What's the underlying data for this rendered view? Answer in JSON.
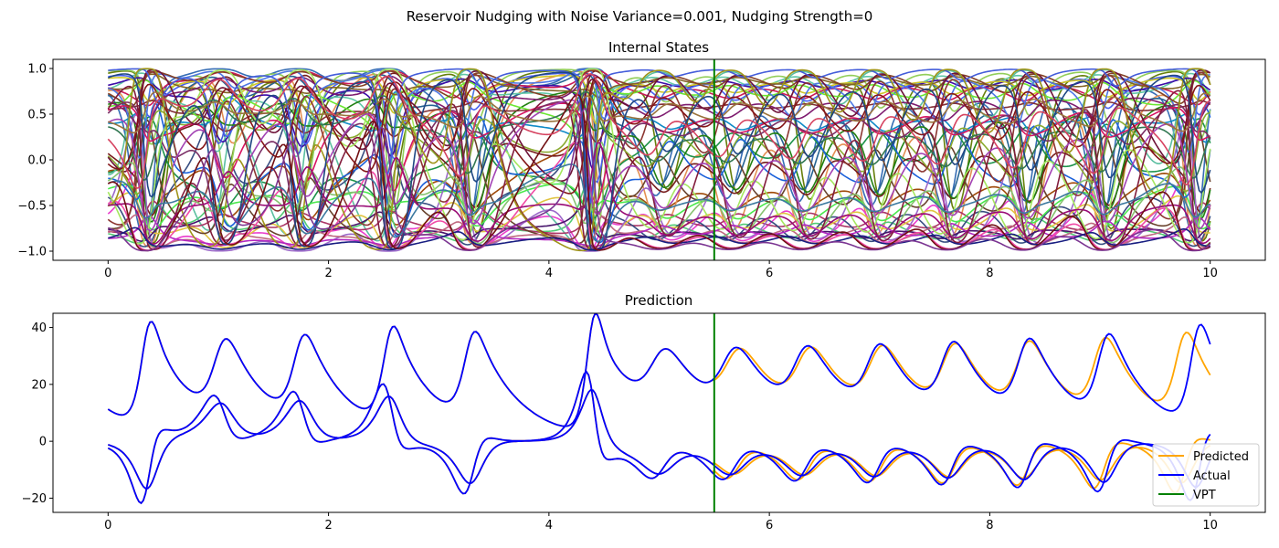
{
  "figure_title": "Reservoir Nudging with Noise Variance=0.001, Nudging Strength=0",
  "colors": {
    "predicted": "#ffa500",
    "actual": "#0000ff",
    "vpt": "#008000"
  },
  "chart_data": [
    {
      "type": "line",
      "title": "Internal States",
      "xlabel": "",
      "ylabel": "",
      "xlim": [
        -0.5,
        10.5
      ],
      "ylim": [
        -1.1,
        1.1
      ],
      "xticks": [
        0,
        2,
        4,
        6,
        8,
        10
      ],
      "yticks": [
        -1.0,
        -0.5,
        0.0,
        0.5,
        1.0
      ],
      "ytick_labels": [
        "−1.0",
        "−0.5",
        "0.0",
        "0.5",
        "1.0"
      ],
      "vpt": 5.5,
      "x_step": 0.02,
      "series_count": 56,
      "legend": "none",
      "grid": false
    },
    {
      "type": "line",
      "title": "Prediction",
      "xlabel": "",
      "ylabel": "",
      "xlim": [
        -0.5,
        10.5
      ],
      "ylim": [
        -25,
        45
      ],
      "xticks": [
        0,
        2,
        4,
        6,
        8,
        10
      ],
      "yticks": [
        -20,
        0,
        20,
        40
      ],
      "ytick_labels": [
        "−20",
        "0",
        "20",
        "40"
      ],
      "vpt": 5.5,
      "x_step": 0.02,
      "legend_position": "lower-right",
      "legend": [
        "Predicted",
        "Actual",
        "VPT"
      ],
      "grid": false,
      "series": [
        {
          "name": "Actual",
          "component": "z",
          "start": 11.3
        },
        {
          "name": "Actual",
          "component": "x",
          "start": -1.2
        },
        {
          "name": "Actual",
          "component": "y",
          "start": -2.4
        },
        {
          "name": "Predicted",
          "component": "z",
          "start": 11.3
        },
        {
          "name": "Predicted",
          "component": "x",
          "start": -1.2
        },
        {
          "name": "Predicted",
          "component": "y",
          "start": -2.4
        }
      ]
    }
  ]
}
